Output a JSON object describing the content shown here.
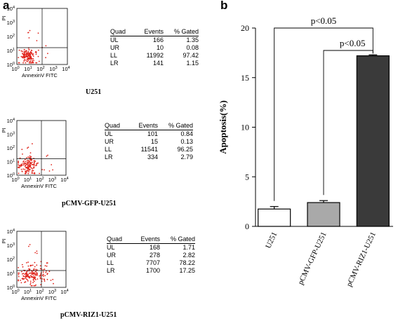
{
  "panel_a": {
    "letter": "a",
    "y_axis_label": "PI",
    "x_axis_label": "AnnexinV FITC",
    "tick_base": "10",
    "tick_exponents": [
      "0",
      "1",
      "2",
      "3",
      "4"
    ],
    "table_headers": [
      "Quad",
      "Events",
      "% Gated"
    ],
    "samples": [
      {
        "label": "U251",
        "rows": [
          [
            "UL",
            "166",
            "1.35"
          ],
          [
            "UR",
            "10",
            "0.08"
          ],
          [
            "LL",
            "11992",
            "97.42"
          ],
          [
            "LR",
            "141",
            "1.15"
          ]
        ]
      },
      {
        "label": "pCMV-GFP-U251",
        "rows": [
          [
            "UL",
            "101",
            "0.84"
          ],
          [
            "UR",
            "15",
            "0.13"
          ],
          [
            "LL",
            "11541",
            "96.25"
          ],
          [
            "LR",
            "334",
            "2.79"
          ]
        ]
      },
      {
        "label": "pCMV-RIZ1-U251",
        "rows": [
          [
            "UL",
            "168",
            "1.71"
          ],
          [
            "UR",
            "278",
            "2.82"
          ],
          [
            "LL",
            "7707",
            "78.22"
          ],
          [
            "LR",
            "1700",
            "17.25"
          ]
        ]
      }
    ]
  },
  "chart_data": {
    "type": "bar",
    "panel_letter": "b",
    "categories": [
      "U251",
      "pCMV-GFP-U251",
      "pCMV-RIZ1-U251"
    ],
    "values": [
      1.75,
      2.4,
      17.2
    ],
    "errors": [
      0.25,
      0.2,
      0.1
    ],
    "bar_colors": [
      "#ffffff",
      "#a9a9a9",
      "#3a3a3a"
    ],
    "ylabel": "Apoptosis(%)",
    "xlabel": "",
    "ylim": [
      0,
      20
    ],
    "yticks": [
      0,
      5,
      10,
      15,
      20
    ],
    "annotations": [
      {
        "text": "p<0.05",
        "from": 0,
        "to": 2
      },
      {
        "text": "p<0.05",
        "from": 1,
        "to": 2
      }
    ]
  }
}
